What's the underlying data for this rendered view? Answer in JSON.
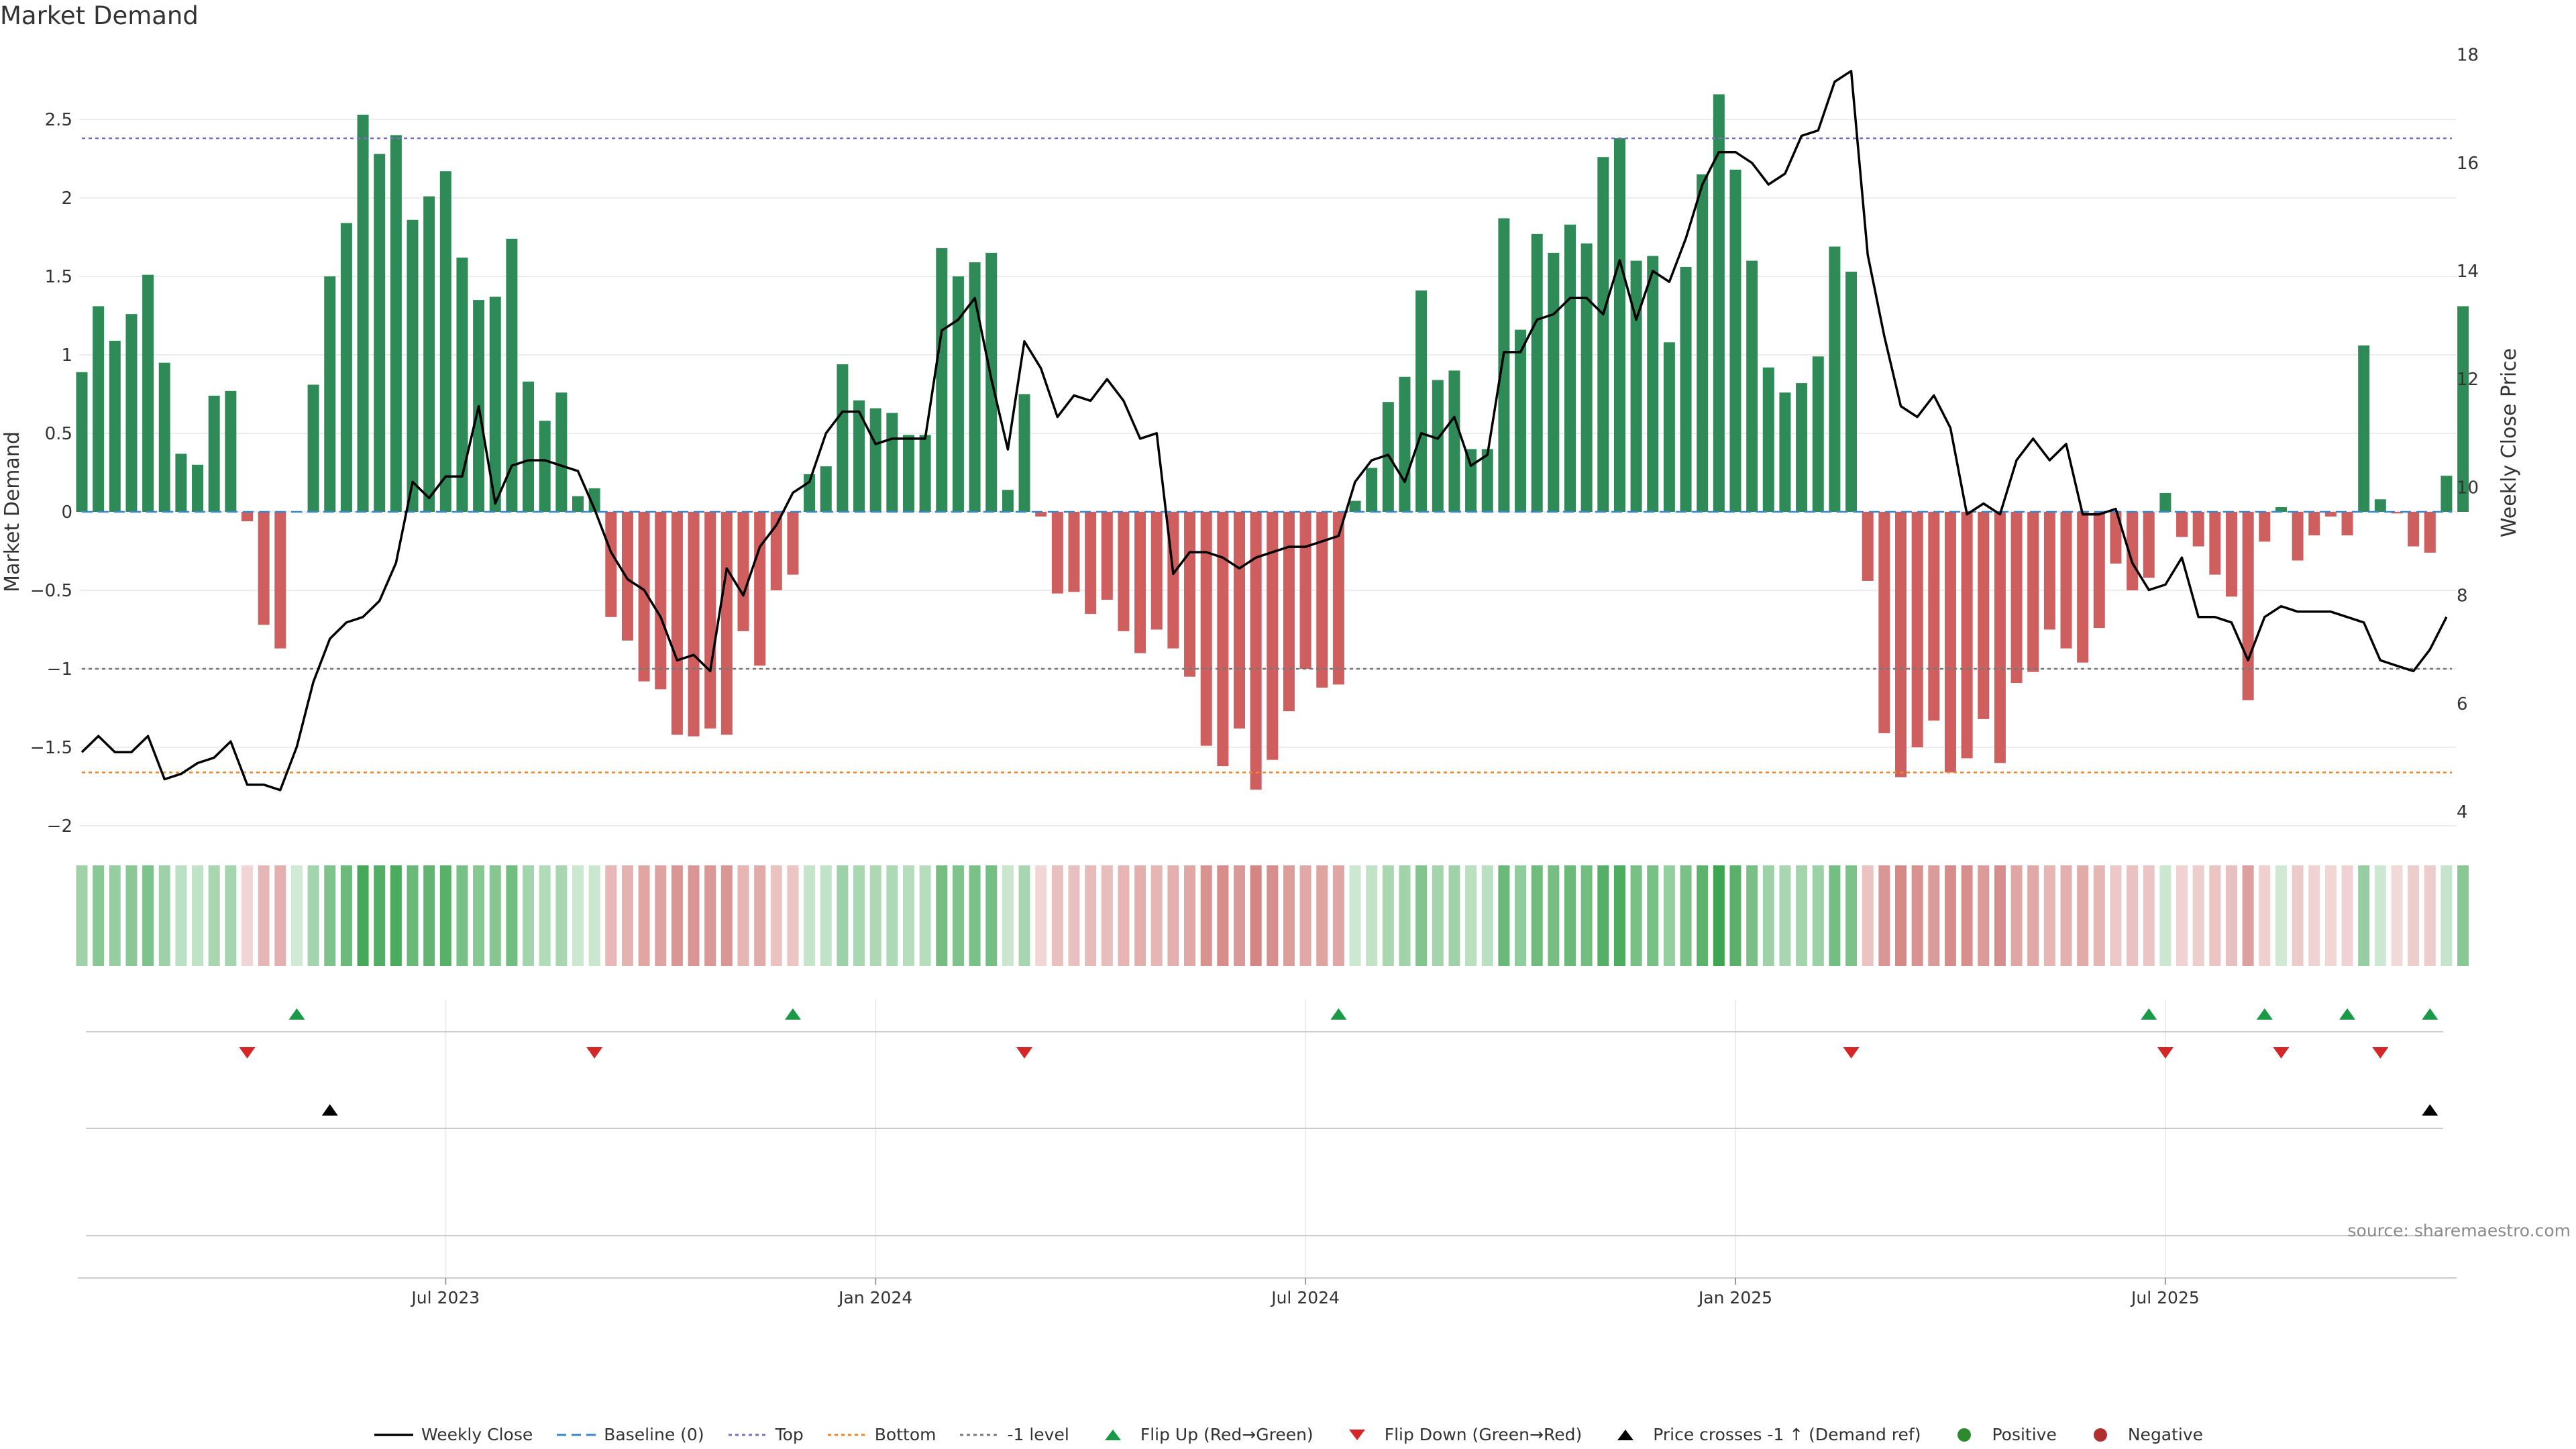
{
  "chart_data": {
    "type": "bar",
    "title": "Market Demand",
    "ylabel": "Market Demand",
    "y2label": "Weekly Close Price",
    "ylim": [
      -2.1,
      2.6
    ],
    "y2lim": [
      3.6,
      18.4
    ],
    "yticks": [
      -2,
      -1.5,
      -1,
      -0.5,
      0,
      0.5,
      1,
      1.5,
      2,
      2.5
    ],
    "ytick_labels": [
      "−2",
      "−1.5",
      "−1",
      "−0.5",
      "0",
      "0.5",
      "1",
      "1.5",
      "2",
      "2.5"
    ],
    "y2ticks": [
      4,
      6,
      8,
      10,
      12,
      14,
      16,
      18
    ],
    "y2tick_labels": [
      "4",
      "6",
      "8",
      "10",
      "12",
      "14",
      "16",
      "18"
    ],
    "xtick_positions": [
      22,
      48,
      74,
      100,
      126
    ],
    "xtick_labels": [
      "Jul 2023",
      "Jan 2024",
      "Jul 2024",
      "Jan 2025",
      "Jul 2025"
    ],
    "reference_lines": {
      "baseline": 0,
      "top": 2.38,
      "bottom": -1.66,
      "minus_one": -1
    },
    "demand": [
      0.89,
      1.31,
      1.09,
      1.26,
      1.51,
      0.95,
      0.37,
      0.3,
      0.74,
      0.77,
      -0.06,
      -0.72,
      -0.87,
      0.0,
      0.81,
      1.5,
      1.84,
      2.53,
      2.28,
      2.4,
      1.86,
      2.01,
      2.17,
      1.62,
      1.35,
      1.37,
      1.74,
      0.83,
      0.58,
      0.76,
      0.1,
      0.15,
      -0.67,
      -0.82,
      -1.08,
      -1.13,
      -1.42,
      -1.43,
      -1.38,
      -1.42,
      -0.76,
      -0.98,
      -0.5,
      -0.4,
      0.24,
      0.29,
      0.94,
      0.71,
      0.66,
      0.63,
      0.49,
      0.49,
      1.68,
      1.5,
      1.59,
      1.65,
      0.14,
      0.75,
      -0.03,
      -0.52,
      -0.51,
      -0.65,
      -0.56,
      -0.76,
      -0.9,
      -0.75,
      -0.87,
      -1.05,
      -1.49,
      -1.62,
      -1.38,
      -1.77,
      -1.58,
      -1.27,
      -1.0,
      -1.12,
      -1.1,
      0.07,
      0.28,
      0.7,
      0.86,
      1.41,
      0.84,
      0.9,
      0.4,
      0.4,
      1.87,
      1.16,
      1.77,
      1.65,
      1.83,
      1.71,
      2.26,
      2.38,
      1.6,
      1.63,
      1.08,
      1.56,
      2.15,
      2.66,
      2.18,
      1.6,
      0.92,
      0.76,
      0.82,
      0.99,
      1.69,
      1.53,
      -0.44,
      -1.41,
      -1.69,
      -1.5,
      -1.33,
      -1.66,
      -1.57,
      -1.32,
      -1.6,
      -1.09,
      -1.02,
      -0.75,
      -0.87,
      -0.96,
      -0.74,
      -0.33,
      -0.5,
      -0.42,
      0.12,
      -0.16,
      -0.22,
      -0.4,
      -0.54,
      -1.2,
      -0.19,
      0.03,
      -0.31,
      -0.15,
      -0.03,
      -0.15,
      1.06,
      0.08,
      -0.01,
      -0.22,
      -0.26,
      0.23,
      1.31
    ],
    "close": [
      5.1,
      5.4,
      5.1,
      5.1,
      5.4,
      4.6,
      4.7,
      4.9,
      5.0,
      5.3,
      4.5,
      4.5,
      4.4,
      5.2,
      6.4,
      7.2,
      7.5,
      7.6,
      7.9,
      8.6,
      10.1,
      9.8,
      10.2,
      10.2,
      11.5,
      9.7,
      10.4,
      10.5,
      10.5,
      10.4,
      10.3,
      9.6,
      8.8,
      8.3,
      8.1,
      7.6,
      6.8,
      6.9,
      6.6,
      8.5,
      8.0,
      8.9,
      9.3,
      9.9,
      10.1,
      11.0,
      11.4,
      11.4,
      10.8,
      10.9,
      10.9,
      10.9,
      12.9,
      13.1,
      13.5,
      12.0,
      10.7,
      12.7,
      12.2,
      11.3,
      11.7,
      11.6,
      12.0,
      11.6,
      10.9,
      11.0,
      8.4,
      8.8,
      8.8,
      8.7,
      8.5,
      8.7,
      8.8,
      8.9,
      8.9,
      9.0,
      9.1,
      10.1,
      10.5,
      10.6,
      10.1,
      11.0,
      10.9,
      11.3,
      10.4,
      10.6,
      12.5,
      12.5,
      13.1,
      13.2,
      13.5,
      13.5,
      13.2,
      14.2,
      13.1,
      14.0,
      13.8,
      14.6,
      15.6,
      16.2,
      16.2,
      16.0,
      15.6,
      15.8,
      16.5,
      16.6,
      17.5,
      17.7,
      14.3,
      12.8,
      11.5,
      11.3,
      11.7,
      11.1,
      9.5,
      9.7,
      9.5,
      10.5,
      10.9,
      10.5,
      10.8,
      9.5,
      9.5,
      9.6,
      8.6,
      8.1,
      8.2,
      8.7,
      7.6,
      7.6,
      7.5,
      6.8,
      7.6,
      7.8,
      7.7,
      7.7,
      7.7,
      7.6,
      7.5,
      6.8,
      6.7,
      6.6,
      7.0,
      7.6
    ],
    "flip_up_indices": [
      13,
      43,
      76,
      125,
      132,
      137,
      142
    ],
    "flip_down_indices": [
      10,
      31,
      57,
      107,
      126,
      133,
      139
    ],
    "price_cross_indices": [
      15,
      142
    ]
  },
  "colors": {
    "positive_bar": "#2e8a57",
    "negative_bar": "#cf5e5e",
    "flip_up": "#1a9a48",
    "flip_down": "#d62728",
    "close_line": "#000000",
    "top_line": "#7b73b9",
    "bottom_line": "#e8883a",
    "minus_one_line": "#777777",
    "baseline": "#3a86c8",
    "positive_dot": "#2e8a2e",
    "negative_dot": "#b03030"
  },
  "legend": [
    {
      "label": "Weekly Close",
      "icon": "solid-line-icon",
      "color": "#000000"
    },
    {
      "label": "Baseline (0)",
      "icon": "dashed-line-icon",
      "color": "#3a86c8"
    },
    {
      "label": "Top",
      "icon": "dotted-line-icon",
      "color": "#7b73b9"
    },
    {
      "label": "Bottom",
      "icon": "dotted-line-icon",
      "color": "#e8883a"
    },
    {
      "label": "-1 level",
      "icon": "dotted-line-icon",
      "color": "#777777"
    },
    {
      "label": "Flip Up (Red→Green)",
      "icon": "triangle-up-icon",
      "color": "#1a9a48"
    },
    {
      "label": "Flip Down (Green→Red)",
      "icon": "triangle-down-icon",
      "color": "#d62728"
    },
    {
      "label": "Price crosses -1 ↑ (Demand ref)",
      "icon": "triangle-up-icon",
      "color": "#000000"
    },
    {
      "label": "Positive",
      "icon": "circle-icon",
      "color": "#2e8a2e"
    },
    {
      "label": "Negative",
      "icon": "circle-icon",
      "color": "#b03030"
    }
  ],
  "source": "source: sharemaestro.com"
}
